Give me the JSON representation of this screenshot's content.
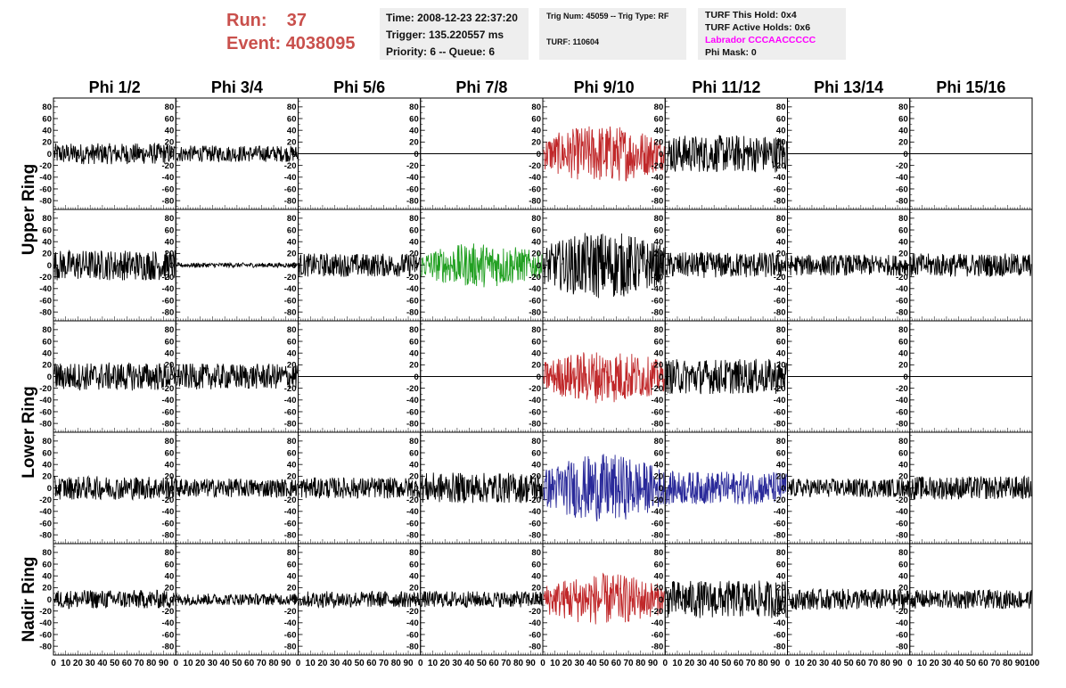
{
  "header": {
    "run_label": "Run:",
    "run_value": "37",
    "event_label": "Event:",
    "event_value": "4038095",
    "time": "Time: 2008-12-23 22:37:20",
    "trigger": "Trigger: 135.220557 ms",
    "priority": "Priority: 6 -- Queue: 6",
    "trig_num": "Trig Num: 45059 -- Trig Type: RF",
    "turf": "TURF: 110604",
    "turf_this_hold": "TURF This Hold: 0x4",
    "turf_active_holds": "TURF Active Holds: 0x6",
    "labrador": "Labrador CCCAACCCCC",
    "phi_mask": "Phi Mask: 0"
  },
  "colors": {
    "header_red": "#c9504c",
    "labrador_magenta": "#ff00ff",
    "trace_black": "#000000",
    "trace_red": "#c0282a",
    "trace_green": "#22a022",
    "trace_blue": "#2a2a9a"
  },
  "chart_data": {
    "type": "line",
    "phi_labels": [
      "Phi 1/2",
      "Phi 3/4",
      "Phi 5/6",
      "Phi 7/8",
      "Phi 9/10",
      "Phi 11/12",
      "Phi 13/14",
      "Phi 15/16"
    ],
    "ring_labels": [
      "Upper Ring",
      "Lower Ring",
      "Nadir Ring"
    ],
    "ylim": [
      -95,
      95
    ],
    "xlim": [
      0,
      100
    ],
    "y_ticks": [
      80,
      60,
      40,
      20,
      0,
      -20,
      -40,
      -60,
      -80
    ],
    "y_tick_labels": [
      "80",
      "60",
      "40",
      "20",
      "0",
      "-20",
      "-40",
      "-60",
      "-80"
    ],
    "x_ticks": [
      0,
      10,
      20,
      30,
      40,
      50,
      60,
      70,
      80,
      90,
      100
    ],
    "x_tick_labels": [
      "0",
      "10",
      "20",
      "30",
      "40",
      "50",
      "60",
      "70",
      "80",
      "90",
      "100"
    ],
    "panels": [
      [
        {
          "amp": 18,
          "color": "black",
          "flat": false
        },
        {
          "amp": 14,
          "color": "black",
          "flat": false
        },
        {
          "amp": 0,
          "color": "black",
          "flat": true
        },
        {
          "amp": 0,
          "color": "black",
          "flat": true
        },
        {
          "amp": 50,
          "color": "red",
          "flat": false
        },
        {
          "amp": 32,
          "color": "black",
          "flat": false
        },
        {
          "amp": 0,
          "color": "black",
          "flat": true
        },
        {
          "amp": 0,
          "color": "black",
          "flat": true
        }
      ],
      [
        {
          "amp": 26,
          "color": "black",
          "flat": false
        },
        {
          "amp": 4,
          "color": "black",
          "flat": false
        },
        {
          "amp": 20,
          "color": "black",
          "flat": false
        },
        {
          "amp": 38,
          "color": "green",
          "flat": false
        },
        {
          "amp": 58,
          "color": "black",
          "flat": false
        },
        {
          "amp": 22,
          "color": "black",
          "flat": false
        },
        {
          "amp": 18,
          "color": "black",
          "flat": false
        },
        {
          "amp": 20,
          "color": "black",
          "flat": false
        }
      ],
      [
        {
          "amp": 24,
          "color": "black",
          "flat": false
        },
        {
          "amp": 22,
          "color": "black",
          "flat": false
        },
        {
          "amp": 0,
          "color": "black",
          "flat": true
        },
        {
          "amp": 0,
          "color": "black",
          "flat": true
        },
        {
          "amp": 46,
          "color": "red",
          "flat": false
        },
        {
          "amp": 30,
          "color": "black",
          "flat": false
        },
        {
          "amp": 0,
          "color": "black",
          "flat": true
        },
        {
          "amp": 0,
          "color": "black",
          "flat": true
        }
      ],
      [
        {
          "amp": 20,
          "color": "black",
          "flat": false
        },
        {
          "amp": 16,
          "color": "black",
          "flat": false
        },
        {
          "amp": 18,
          "color": "black",
          "flat": false
        },
        {
          "amp": 26,
          "color": "black",
          "flat": false
        },
        {
          "amp": 58,
          "color": "blue",
          "flat": false
        },
        {
          "amp": 28,
          "color": "blue",
          "flat": false
        },
        {
          "amp": 16,
          "color": "black",
          "flat": false
        },
        {
          "amp": 20,
          "color": "black",
          "flat": false
        }
      ],
      [
        {
          "amp": 16,
          "color": "black",
          "flat": false
        },
        {
          "amp": 10,
          "color": "black",
          "flat": false
        },
        {
          "amp": 14,
          "color": "black",
          "flat": false
        },
        {
          "amp": 14,
          "color": "black",
          "flat": false
        },
        {
          "amp": 44,
          "color": "red",
          "flat": false
        },
        {
          "amp": 32,
          "color": "black",
          "flat": false
        },
        {
          "amp": 18,
          "color": "black",
          "flat": false
        },
        {
          "amp": 16,
          "color": "black",
          "flat": false
        }
      ]
    ]
  }
}
